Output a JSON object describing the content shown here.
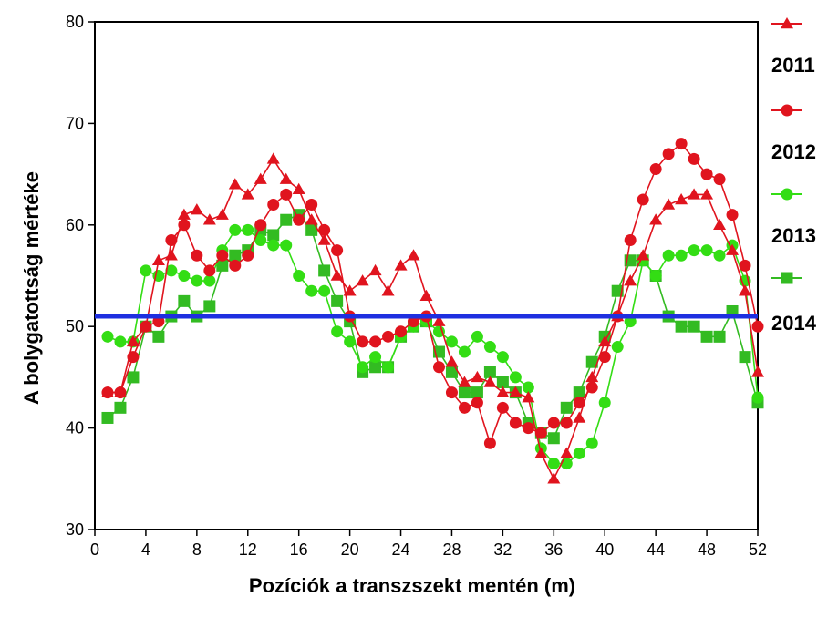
{
  "chart_data": {
    "type": "line",
    "title": "",
    "xlabel": "Pozíciók a transzszekt mentén (m)",
    "ylabel": "A bolygatottság mértéke",
    "xlim": [
      0,
      52
    ],
    "ylim": [
      30,
      80
    ],
    "x_ticks": [
      "0",
      "4",
      "8",
      "12",
      "16",
      "20",
      "24",
      "28",
      "32",
      "36",
      "40",
      "44",
      "48",
      "52"
    ],
    "y_ticks": [
      "30",
      "40",
      "50",
      "60",
      "70",
      "80"
    ],
    "x": [
      1,
      2,
      3,
      4,
      5,
      6,
      7,
      8,
      9,
      10,
      11,
      12,
      13,
      14,
      15,
      16,
      17,
      18,
      19,
      20,
      21,
      22,
      23,
      24,
      25,
      26,
      27,
      28,
      29,
      30,
      31,
      32,
      33,
      34,
      35,
      36,
      37,
      38,
      39,
      40,
      41,
      42,
      43,
      44,
      45,
      46,
      47,
      48,
      49,
      50,
      51,
      52
    ],
    "reference_line": {
      "y": 51,
      "color": "#1e2fe0"
    },
    "grid": false,
    "legend_position": "right",
    "series": [
      {
        "name": "2011",
        "color": "#e0141e",
        "marker": "triangle",
        "values": [
          43.5,
          43.5,
          48.5,
          50,
          56.5,
          57,
          61,
          61.5,
          60.5,
          61,
          64,
          63,
          64.5,
          66.5,
          64.5,
          63.5,
          60.5,
          58.5,
          55,
          53.5,
          54.5,
          55.5,
          53.5,
          56,
          57,
          53,
          50.5,
          46.5,
          44.5,
          45,
          44.5,
          43.5,
          43.5,
          43,
          37.5,
          35,
          37.5,
          41,
          45,
          48.5,
          51,
          54.5,
          57,
          60.5,
          62,
          62.5,
          63,
          63,
          60,
          57.5,
          53.5,
          45.5
        ]
      },
      {
        "name": "2012",
        "color": "#e0141e",
        "marker": "circle",
        "values": [
          43.5,
          43.5,
          47,
          50,
          50.5,
          58.5,
          60,
          57,
          55.5,
          57,
          56,
          57,
          60,
          62,
          63,
          60.5,
          62,
          59.5,
          57.5,
          51,
          48.5,
          48.5,
          49,
          49.5,
          50.5,
          51,
          46,
          43.5,
          42,
          42.5,
          38.5,
          42,
          40.5,
          40,
          39.5,
          40.5,
          40.5,
          42.5,
          44,
          47,
          51,
          58.5,
          62.5,
          65.5,
          67,
          68,
          66.5,
          65,
          64.5,
          61,
          56,
          50
        ]
      },
      {
        "name": "2013",
        "color": "#33dd14",
        "marker": "circle",
        "values": [
          49,
          48.5,
          48.5,
          55.5,
          55,
          55.5,
          55,
          54.5,
          54.5,
          57.5,
          59.5,
          59.5,
          58.5,
          58,
          58,
          55,
          53.5,
          53.5,
          49.5,
          48.5,
          46,
          47,
          46,
          49,
          50,
          50.5,
          49.5,
          48.5,
          47.5,
          49,
          48,
          47,
          45,
          44,
          38,
          36.5,
          36.5,
          37.5,
          38.5,
          42.5,
          48,
          50.5,
          56.5,
          55,
          57,
          57,
          57.5,
          57.5,
          57,
          58,
          54.5,
          43
        ]
      },
      {
        "name": "2014",
        "color": "#33bb22",
        "marker": "square",
        "values": [
          41,
          42,
          45,
          50,
          49,
          51,
          52.5,
          51,
          52,
          56,
          57,
          57.5,
          59.5,
          59,
          60.5,
          61,
          59.5,
          55.5,
          52.5,
          50.5,
          45.5,
          46,
          46,
          49,
          50,
          50.5,
          47.5,
          45.5,
          43.5,
          43.5,
          45.5,
          44.5,
          43.5,
          40.5,
          39.5,
          39,
          42,
          43.5,
          46.5,
          49,
          53.5,
          56.5,
          56.5,
          55,
          51,
          50,
          50,
          49,
          49,
          51.5,
          47,
          42.5
        ]
      }
    ]
  }
}
